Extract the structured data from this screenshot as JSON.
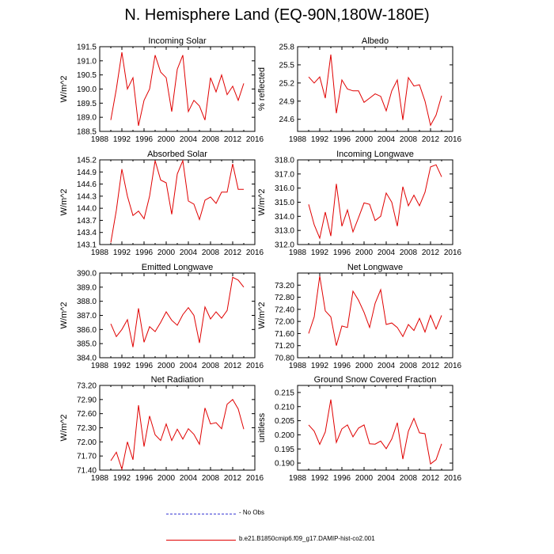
{
  "title": "N. Hemisphere Land (EQ-90N,180W-180E)",
  "legend": {
    "items": [
      {
        "label": "- No Obs",
        "style": "dashed",
        "color": "#3b3bd6"
      },
      {
        "label": "b.e21.B1850cmip6.f09_g17.DAMIP-hist-co2.001",
        "style": "solid",
        "color": "#e00000"
      }
    ]
  },
  "chart_data": [
    {
      "type": "line",
      "title": "Incoming Solar",
      "ylabel": "W/m^2",
      "xlim": [
        1988,
        2016
      ],
      "ylim": [
        188.5,
        191.5
      ],
      "xticks": [
        "1988",
        "1992",
        "1996",
        "2000",
        "2004",
        "2008",
        "2012",
        "2016"
      ],
      "yticks": [
        "188.5",
        "189.0",
        "189.5",
        "190.0",
        "190.5",
        "191.0",
        "191.5"
      ],
      "color": "#e00000",
      "x": [
        1990,
        1991,
        1992,
        1993,
        1994,
        1995,
        1996,
        1997,
        1998,
        1999,
        2000,
        2001,
        2002,
        2003,
        2004,
        2005,
        2006,
        2007,
        2008,
        2009,
        2010,
        2011,
        2012,
        2013,
        2014
      ],
      "values": [
        188.9,
        190.0,
        191.3,
        190.0,
        190.4,
        188.7,
        189.6,
        190.0,
        191.2,
        190.6,
        190.4,
        189.2,
        190.7,
        191.2,
        189.2,
        189.6,
        189.4,
        188.9,
        190.4,
        189.9,
        190.5,
        189.8,
        190.1,
        189.6,
        190.2
      ]
    },
    {
      "type": "line",
      "title": "Albedo",
      "ylabel": "% reflected",
      "xlim": [
        1988,
        2016
      ],
      "ylim": [
        24.4,
        25.8
      ],
      "xticks": [
        "1988",
        "1992",
        "1996",
        "2000",
        "2004",
        "2008",
        "2012",
        "2016"
      ],
      "yticks": [
        "24.6",
        "24.9",
        "25.2",
        "25.5",
        "25.8"
      ],
      "color": "#e00000",
      "x": [
        1990,
        1991,
        1992,
        1993,
        1994,
        1995,
        1996,
        1997,
        1998,
        1999,
        2000,
        2001,
        2002,
        2003,
        2004,
        2005,
        2006,
        2007,
        2008,
        2009,
        2010,
        2011,
        2012,
        2013,
        2014
      ],
      "values": [
        25.3,
        25.2,
        25.3,
        24.95,
        25.67,
        24.7,
        25.25,
        25.1,
        25.07,
        25.07,
        24.88,
        24.95,
        25.02,
        24.98,
        24.74,
        25.07,
        25.25,
        24.59,
        25.29,
        25.15,
        25.17,
        24.9,
        24.5,
        24.67,
        24.99
      ]
    },
    {
      "type": "line",
      "title": "Absorbed Solar",
      "ylabel": "W/m^2",
      "xlim": [
        1988,
        2016
      ],
      "ylim": [
        143.1,
        145.2
      ],
      "xticks": [
        "1988",
        "1992",
        "1996",
        "2000",
        "2004",
        "2008",
        "2012",
        "2016"
      ],
      "yticks": [
        "143.1",
        "143.4",
        "143.7",
        "144.0",
        "144.3",
        "144.6",
        "144.9",
        "145.2"
      ],
      "color": "#e00000",
      "x": [
        1990,
        1991,
        1992,
        1993,
        1994,
        1995,
        1996,
        1997,
        1998,
        1999,
        2000,
        2001,
        2002,
        2003,
        2004,
        2005,
        2006,
        2007,
        2008,
        2009,
        2010,
        2011,
        2012,
        2013,
        2014
      ],
      "values": [
        143.15,
        143.95,
        144.97,
        144.3,
        143.82,
        143.93,
        143.74,
        144.3,
        145.18,
        144.7,
        144.63,
        143.85,
        144.85,
        145.18,
        144.18,
        144.1,
        143.72,
        144.2,
        144.28,
        144.12,
        144.4,
        144.4,
        145.1,
        144.47,
        144.47
      ]
    },
    {
      "type": "line",
      "title": "Incoming Longwave",
      "ylabel": "W/m^2",
      "xlim": [
        1988,
        2016
      ],
      "ylim": [
        312.0,
        318.0
      ],
      "xticks": [
        "1988",
        "1992",
        "1996",
        "2000",
        "2004",
        "2008",
        "2012",
        "2016"
      ],
      "yticks": [
        "312.0",
        "313.0",
        "314.0",
        "315.0",
        "316.0",
        "317.0",
        "318.0"
      ],
      "color": "#e00000",
      "x": [
        1990,
        1991,
        1992,
        1993,
        1994,
        1995,
        1996,
        1997,
        1998,
        1999,
        2000,
        2001,
        2002,
        2003,
        2004,
        2005,
        2006,
        2007,
        2008,
        2009,
        2010,
        2011,
        2012,
        2013,
        2014
      ],
      "values": [
        314.85,
        313.4,
        312.45,
        314.3,
        312.6,
        316.3,
        313.3,
        314.45,
        312.9,
        313.9,
        314.95,
        314.85,
        313.7,
        314.0,
        315.65,
        315.0,
        313.3,
        316.1,
        314.75,
        315.5,
        314.75,
        315.7,
        317.5,
        317.65,
        316.8
      ]
    },
    {
      "type": "line",
      "title": "Emitted Longwave",
      "ylabel": "W/m^2",
      "xlim": [
        1988,
        2016
      ],
      "ylim": [
        384.0,
        390.0
      ],
      "xticks": [
        "1988",
        "1992",
        "1996",
        "2000",
        "2004",
        "2008",
        "2012",
        "2016"
      ],
      "yticks": [
        "384.0",
        "385.0",
        "386.0",
        "387.0",
        "388.0",
        "389.0",
        "390.0"
      ],
      "color": "#e00000",
      "x": [
        1990,
        1991,
        1992,
        1993,
        1994,
        1995,
        1996,
        1997,
        1998,
        1999,
        2000,
        2001,
        2002,
        2003,
        2004,
        2005,
        2006,
        2007,
        2008,
        2009,
        2010,
        2011,
        2012,
        2013,
        2014
      ],
      "values": [
        386.4,
        385.5,
        386.0,
        386.7,
        384.75,
        387.5,
        385.1,
        386.2,
        385.85,
        386.5,
        387.25,
        386.65,
        386.3,
        387.05,
        387.55,
        387.0,
        385.05,
        387.6,
        386.75,
        387.25,
        386.8,
        387.35,
        389.7,
        389.5,
        389.0
      ]
    },
    {
      "type": "line",
      "title": "Net Longwave",
      "ylabel": "W/m^2",
      "xlim": [
        1988,
        2016
      ],
      "ylim": [
        70.8,
        73.6
      ],
      "xticks": [
        "1988",
        "1992",
        "1996",
        "2000",
        "2004",
        "2008",
        "2012",
        "2016"
      ],
      "yticks": [
        "70.80",
        "71.20",
        "71.60",
        "72.00",
        "72.40",
        "72.80",
        "73.20"
      ],
      "color": "#e00000",
      "x": [
        1990,
        1991,
        1992,
        1993,
        1994,
        1995,
        1996,
        1997,
        1998,
        1999,
        2000,
        2001,
        2002,
        2003,
        2004,
        2005,
        2006,
        2007,
        2008,
        2009,
        2010,
        2011,
        2012,
        2013,
        2014
      ],
      "values": [
        71.6,
        72.15,
        73.5,
        72.35,
        72.15,
        71.2,
        71.85,
        71.8,
        73.0,
        72.7,
        72.3,
        71.8,
        72.6,
        73.05,
        71.9,
        71.95,
        71.8,
        71.5,
        71.9,
        71.7,
        72.1,
        71.65,
        72.2,
        71.75,
        72.2
      ]
    },
    {
      "type": "line",
      "title": "Net Radiation",
      "ylabel": "W/m^2",
      "xlim": [
        1988,
        2016
      ],
      "ylim": [
        71.4,
        73.2
      ],
      "xticks": [
        "1988",
        "1992",
        "1996",
        "2000",
        "2004",
        "2008",
        "2012",
        "2016"
      ],
      "yticks": [
        "71.40",
        "71.70",
        "72.00",
        "72.30",
        "72.60",
        "72.90",
        "73.20"
      ],
      "color": "#e00000",
      "x": [
        1990,
        1991,
        1992,
        1993,
        1994,
        1995,
        1996,
        1997,
        1998,
        1999,
        2000,
        2001,
        2002,
        2003,
        2004,
        2005,
        2006,
        2007,
        2008,
        2009,
        2010,
        2011,
        2012,
        2013,
        2014
      ],
      "values": [
        71.6,
        71.78,
        71.42,
        72.0,
        71.62,
        72.78,
        71.9,
        72.55,
        72.15,
        72.03,
        72.38,
        72.03,
        72.27,
        72.06,
        72.28,
        72.16,
        71.95,
        72.72,
        72.38,
        72.41,
        72.28,
        72.8,
        72.9,
        72.7,
        72.27
      ]
    },
    {
      "type": "line",
      "title": "Ground Snow Covered Fraction",
      "ylabel": "unitless",
      "xlim": [
        1988,
        2016
      ],
      "ylim": [
        0.1875,
        0.2175
      ],
      "xticks": [
        "1988",
        "1992",
        "1996",
        "2000",
        "2004",
        "2008",
        "2012",
        "2016"
      ],
      "yticks": [
        "0.190",
        "0.195",
        "0.200",
        "0.205",
        "0.210",
        "0.215"
      ],
      "color": "#e00000",
      "x": [
        1990,
        1991,
        1992,
        1993,
        1994,
        1995,
        1996,
        1997,
        1998,
        1999,
        2000,
        2001,
        2002,
        2003,
        2004,
        2005,
        2006,
        2007,
        2008,
        2009,
        2010,
        2011,
        2012,
        2013,
        2014
      ],
      "values": [
        0.2035,
        0.2013,
        0.1966,
        0.201,
        0.2125,
        0.1973,
        0.2021,
        0.2035,
        0.1993,
        0.2024,
        0.2035,
        0.1968,
        0.1967,
        0.1978,
        0.1951,
        0.1985,
        0.2043,
        0.1914,
        0.2013,
        0.2058,
        0.2007,
        0.2004,
        0.1897,
        0.1912,
        0.1968
      ]
    }
  ]
}
